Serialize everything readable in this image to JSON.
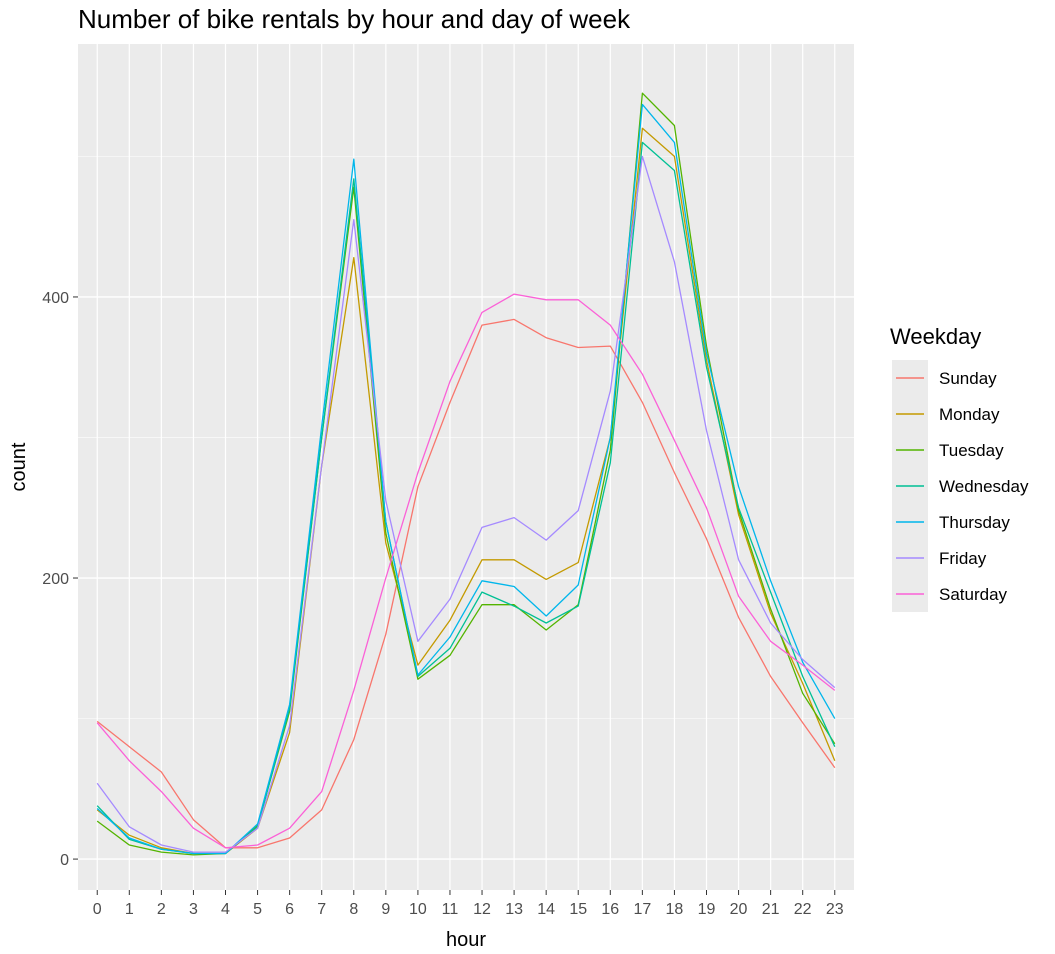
{
  "chart_data": {
    "type": "line",
    "title": "Number of bike rentals by hour and day of week",
    "xlabel": "hour",
    "ylabel": "count",
    "x": [
      0,
      1,
      2,
      3,
      4,
      5,
      6,
      7,
      8,
      9,
      10,
      11,
      12,
      13,
      14,
      15,
      16,
      17,
      18,
      19,
      20,
      21,
      22,
      23
    ],
    "xlim": [
      -0.6,
      23.6
    ],
    "ylim": [
      -22,
      580
    ],
    "y_ticks": [
      0,
      200,
      400
    ],
    "grid": true,
    "legend_title": "Weekday",
    "legend_position": "right",
    "panel_background": "#ebebeb",
    "grid_color": "#ffffff",
    "series": [
      {
        "name": "Sunday",
        "color": "#F8766D",
        "values": [
          98,
          80,
          62,
          28,
          8,
          8,
          15,
          35,
          85,
          160,
          265,
          325,
          380,
          384,
          371,
          364,
          365,
          325,
          275,
          228,
          172,
          130,
          97,
          65
        ]
      },
      {
        "name": "Monday",
        "color": "#C49A00",
        "values": [
          35,
          17,
          8,
          4,
          4,
          22,
          90,
          280,
          428,
          225,
          138,
          170,
          213,
          213,
          199,
          211,
          300,
          520,
          500,
          355,
          245,
          175,
          125,
          70
        ]
      },
      {
        "name": "Tuesday",
        "color": "#53B400",
        "values": [
          27,
          10,
          5,
          3,
          4,
          24,
          105,
          300,
          478,
          232,
          128,
          145,
          181,
          181,
          163,
          181,
          291,
          545,
          522,
          365,
          248,
          178,
          118,
          82
        ]
      },
      {
        "name": "Wednesday",
        "color": "#00C094",
        "values": [
          38,
          14,
          7,
          4,
          4,
          23,
          107,
          300,
          484,
          240,
          130,
          150,
          190,
          180,
          168,
          180,
          282,
          510,
          490,
          350,
          250,
          190,
          130,
          80
        ]
      },
      {
        "name": "Thursday",
        "color": "#00B6EB",
        "values": [
          36,
          15,
          7,
          4,
          4,
          25,
          110,
          308,
          498,
          240,
          131,
          158,
          198,
          194,
          173,
          195,
          300,
          537,
          510,
          360,
          265,
          198,
          140,
          100
        ]
      },
      {
        "name": "Friday",
        "color": "#A58AFF",
        "values": [
          54,
          23,
          10,
          5,
          5,
          22,
          95,
          280,
          455,
          255,
          155,
          185,
          236,
          243,
          227,
          248,
          333,
          500,
          425,
          305,
          213,
          168,
          142,
          122
        ]
      },
      {
        "name": "Saturday",
        "color": "#FB61D7",
        "values": [
          97,
          70,
          48,
          22,
          8,
          10,
          22,
          48,
          120,
          200,
          275,
          340,
          389,
          402,
          398,
          398,
          380,
          345,
          298,
          250,
          187,
          155,
          138,
          120
        ]
      }
    ]
  }
}
